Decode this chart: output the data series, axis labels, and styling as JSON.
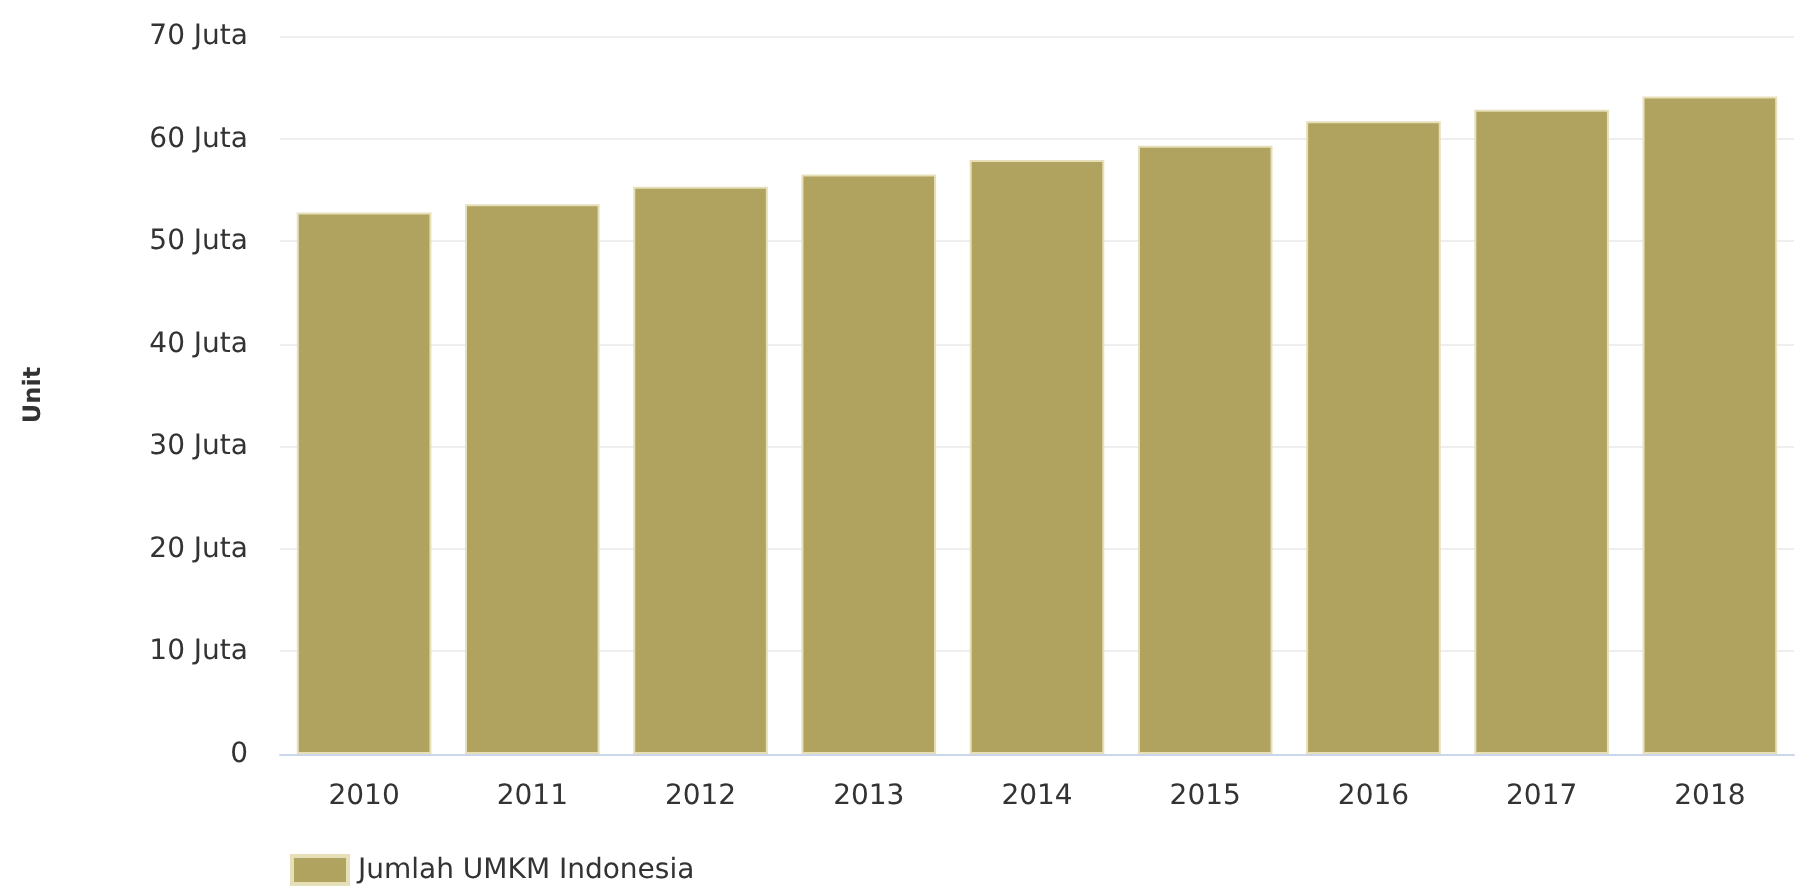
{
  "chart_data": {
    "type": "bar",
    "ylabel": "Unit",
    "categories": [
      "2010",
      "2011",
      "2012",
      "2013",
      "2014",
      "2015",
      "2016",
      "2017",
      "2018"
    ],
    "series": [
      {
        "name": "Jumlah UMKM Indonesia",
        "color": "#afa35f",
        "values": [
          52.8,
          53.6,
          55.3,
          56.5,
          57.9,
          59.3,
          61.7,
          62.8,
          64.1
        ]
      }
    ],
    "ylim": [
      0,
      70
    ],
    "yticks": [
      0,
      {
        "value": 10,
        "label": "10 Juta"
      },
      {
        "value": 20,
        "label": "20 Juta"
      },
      {
        "value": 30,
        "label": "30 Juta"
      },
      {
        "value": 40,
        "label": "40 Juta"
      },
      {
        "value": 50,
        "label": "50 Juta"
      },
      {
        "value": 60,
        "label": "60 Juta"
      },
      {
        "value": 70,
        "label": "70 Juta"
      }
    ],
    "grid": "y",
    "legend": "bottom left"
  }
}
